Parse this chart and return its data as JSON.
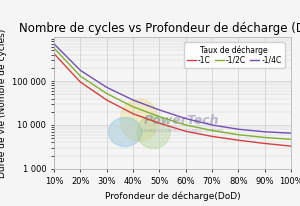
{
  "title": "Nombre de cycles vs Profondeur de décharge (DoD)",
  "xlabel": "Profondeur de décharge(DoD)",
  "ylabel": "Durée de vie (Nombre de cycles)",
  "legend_title": "Taux de décharge",
  "legend_labels": [
    "-1C",
    "-1/2C",
    "-1/4C"
  ],
  "line_colors": [
    "#d04040",
    "#80b030",
    "#7050b0"
  ],
  "dod_points": [
    0.1,
    0.2,
    0.3,
    0.4,
    0.5,
    0.6,
    0.7,
    0.8,
    0.9,
    1.0
  ],
  "cycles_1C": [
    420000,
    95000,
    37000,
    18000,
    11000,
    7200,
    5500,
    4500,
    3800,
    3300
  ],
  "cycles_05C": [
    560000,
    130000,
    52000,
    26000,
    15500,
    10000,
    7500,
    6000,
    5200,
    4700
  ],
  "cycles_025C": [
    700000,
    175000,
    72000,
    37000,
    22000,
    14000,
    10000,
    8000,
    7000,
    6500
  ],
  "xlim": [
    0.1,
    1.0
  ],
  "ylim_log": [
    1000,
    1000000
  ],
  "yticks": [
    1000,
    10000,
    100000
  ],
  "ytick_labels": [
    "1 000",
    "10 000",
    "100 000"
  ],
  "xtick_pct": [
    "10%",
    "20%",
    "30%",
    "40%",
    "50%",
    "60%",
    "70%",
    "80%",
    "90%",
    "100%"
  ],
  "bg_color": "#f5f5f5",
  "grid_color": "#cccccc",
  "title_fontsize": 8.5,
  "label_fontsize": 6.5,
  "tick_fontsize": 6,
  "legend_fontsize": 5.5
}
